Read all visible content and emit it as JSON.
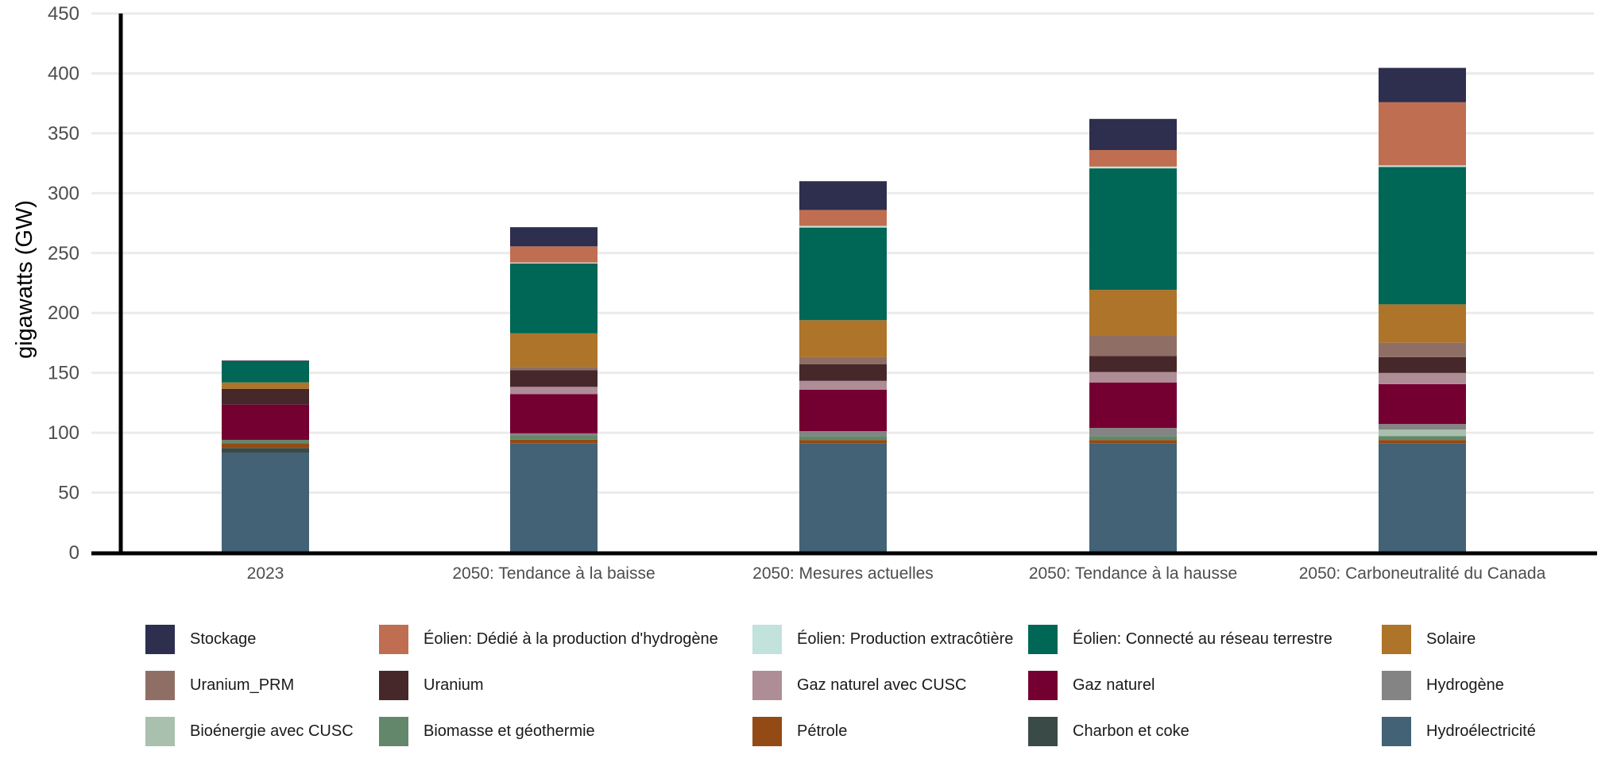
{
  "chart_data": {
    "type": "bar",
    "stacked": true,
    "title": "",
    "xlabel": "",
    "ylabel": "gigawatts (GW)",
    "ylim": [
      0,
      450
    ],
    "yticks": [
      0,
      50,
      100,
      150,
      200,
      250,
      300,
      350,
      400,
      450
    ],
    "grid": "horizontal",
    "legend_position": "bottom",
    "categories": [
      "2023",
      "2050: Tendance à la baisse",
      "2050: Mesures actuelles",
      "2050: Tendance à la hausse",
      "2050: Carboneutralité du Canada"
    ],
    "series": [
      {
        "name": "Hydroélectricité",
        "color": "#436275",
        "values": [
          83.5,
          91.3,
          91.3,
          91.3,
          91.3
        ]
      },
      {
        "name": "Charbon et coke",
        "color": "#3a4a46",
        "values": [
          3.8,
          0,
          0,
          0,
          0
        ]
      },
      {
        "name": "Pétrole",
        "color": "#944a14",
        "values": [
          4.0,
          2.9,
          2.7,
          2.7,
          2.7
        ]
      },
      {
        "name": "Biomasse et géothermie",
        "color": "#63876a",
        "values": [
          2.7,
          3.6,
          3.3,
          3.3,
          3.3
        ]
      },
      {
        "name": "Bioénergie avec CUSC",
        "color": "#a9c0ae",
        "values": [
          0,
          0,
          0,
          0,
          5.3
        ]
      },
      {
        "name": "Hydrogène",
        "color": "#848484",
        "values": [
          0,
          1.7,
          4.0,
          6.7,
          4.7
        ]
      },
      {
        "name": "Gaz naturel",
        "color": "#740032",
        "values": [
          29.5,
          32.8,
          34.7,
          38.0,
          33.3
        ]
      },
      {
        "name": "Gaz naturel avec CUSC",
        "color": "#ae8d97",
        "values": [
          0,
          6.0,
          7.3,
          8.7,
          9.3
        ]
      },
      {
        "name": "Uranium",
        "color": "#47282a",
        "values": [
          13.2,
          14.0,
          14.0,
          13.3,
          13.3
        ]
      },
      {
        "name": "Uranium_PRM",
        "color": "#8f6f65",
        "values": [
          0,
          2.7,
          6.0,
          17.3,
          12.0
        ]
      },
      {
        "name": "Solaire",
        "color": "#ae7429",
        "values": [
          5.3,
          28.0,
          30.7,
          38.0,
          32.0
        ]
      },
      {
        "name": "Éolien: Connecté au réseau terrestre",
        "color": "#006655",
        "values": [
          17.8,
          58.3,
          77.3,
          101.4,
          114.7
        ]
      },
      {
        "name": "Éolien: Production extracôtière",
        "color": "#c2e2dc",
        "values": [
          0,
          0.8,
          1.4,
          1.5,
          1.3
        ]
      },
      {
        "name": "Éolien: Dédié à la production d'hydrogène",
        "color": "#bf6e52",
        "values": [
          0,
          13.5,
          13.3,
          13.8,
          52.7
        ]
      },
      {
        "name": "Stockage",
        "color": "#2e2e4e",
        "values": [
          0.5,
          16.0,
          24.0,
          26.0,
          28.7
        ]
      }
    ],
    "totals_approx": [
      160.3,
      271.6,
      310.0,
      362.0,
      404.6
    ]
  },
  "legend": {
    "rows": [
      [
        "Stockage",
        "Éolien: Dédié à la production d'hydrogène",
        "Éolien: Production extracôtière",
        "Éolien: Connecté au réseau terrestre",
        "Solaire"
      ],
      [
        "Uranium_PRM",
        "Uranium",
        "Gaz naturel avec CUSC",
        "Gaz naturel",
        "Hydrogène"
      ],
      [
        "Bioénergie avec CUSC",
        "Biomasse et géothermie",
        "Pétrole",
        "Charbon et coke",
        "Hydroélectricité"
      ]
    ]
  }
}
